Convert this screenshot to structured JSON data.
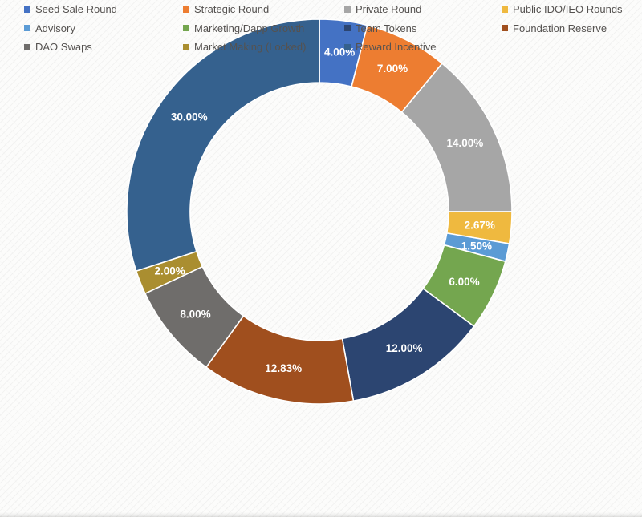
{
  "chart_data": {
    "type": "pie",
    "subtype": "donut",
    "title": "",
    "unit": "%",
    "legend_position": "bottom",
    "legend_columns": 4,
    "inner_radius_ratio": 0.67,
    "start_angle_deg": 0,
    "clockwise": true,
    "label_color": "#ffffff",
    "series": [
      {
        "name": "Seed Sale Round",
        "value": 4.0,
        "label": "4.00%",
        "color": "#4472c4"
      },
      {
        "name": "Strategic Round",
        "value": 7.0,
        "label": "7.00%",
        "color": "#ed7d31"
      },
      {
        "name": "Private Round",
        "value": 14.0,
        "label": "14.00%",
        "color": "#a6a6a6"
      },
      {
        "name": "Public IDO/IEO Rounds",
        "value": 2.67,
        "label": "2.67%",
        "color": "#efb93f"
      },
      {
        "name": "Advisory",
        "value": 1.5,
        "label": "1.50%",
        "color": "#5b9bd5"
      },
      {
        "name": "Marketing/Dapp Growth",
        "value": 6.0,
        "label": "6.00%",
        "color": "#74a64f"
      },
      {
        "name": "Team Tokens",
        "value": 12.0,
        "label": "12.00%",
        "color": "#2c4571"
      },
      {
        "name": "Foundation Reserve",
        "value": 12.83,
        "label": "12.83%",
        "color": "#a04f1e"
      },
      {
        "name": "DAO Swaps",
        "value": 8.0,
        "label": "8.00%",
        "color": "#6f6d6b"
      },
      {
        "name": "Market Making (Locked)",
        "value": 2.0,
        "label": "2.00%",
        "color": "#aa8e30"
      },
      {
        "name": "Reward Incentive",
        "value": 30.0,
        "label": "30.00%",
        "color": "#35618e"
      }
    ]
  }
}
